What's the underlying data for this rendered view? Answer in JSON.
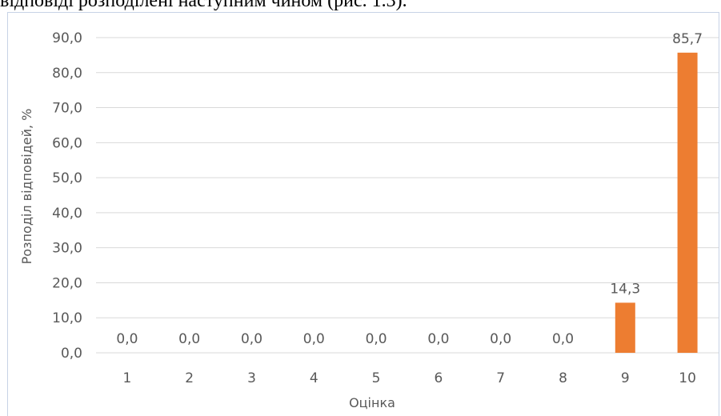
{
  "document": {
    "top_text": "відповіді розподілені наступним чином (рис. 1.3)."
  },
  "colors": {
    "bar": "#ED7D31",
    "grid": "#D9D9D9",
    "axis_text": "#595959",
    "frame": "#C7D3E6"
  },
  "chart_data": {
    "type": "bar",
    "title": "",
    "xlabel": "Оцінка",
    "ylabel": "Розподіл відповідей, %",
    "categories": [
      "1",
      "2",
      "3",
      "4",
      "5",
      "6",
      "7",
      "8",
      "9",
      "10"
    ],
    "values": [
      0.0,
      0.0,
      0.0,
      0.0,
      0.0,
      0.0,
      0.0,
      0.0,
      14.3,
      85.7
    ],
    "value_labels": [
      "0,0",
      "0,0",
      "0,0",
      "0,0",
      "0,0",
      "0,0",
      "0,0",
      "0,0",
      "14,3",
      "85,7"
    ],
    "ylim": [
      0,
      90
    ],
    "yticks": [
      0,
      10,
      20,
      30,
      40,
      50,
      60,
      70,
      80,
      90
    ],
    "ytick_labels": [
      "0,0",
      "10,0",
      "20,0",
      "30,0",
      "40,0",
      "50,0",
      "60,0",
      "70,0",
      "80,0",
      "90,0"
    ],
    "grid": true,
    "legend": "none"
  }
}
